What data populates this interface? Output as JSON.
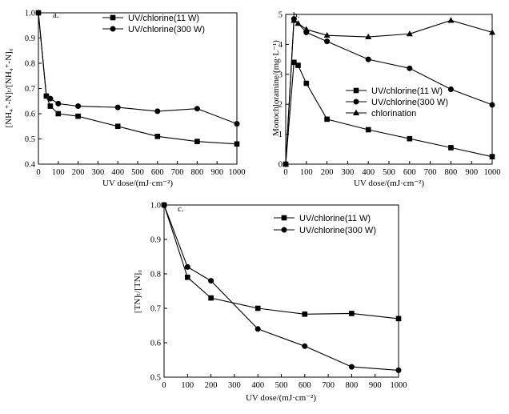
{
  "chart_data": [
    {
      "type": "line",
      "panel": "a.",
      "xlabel": "UV dose/(mJ·cm⁻²)",
      "ylabel": "[NH₄⁺-N]ₜ/[NH₄⁺-N]₀",
      "xlim": [
        0,
        1000
      ],
      "ylim": [
        0.4,
        1.0
      ],
      "xticks": [
        "0",
        "100",
        "200",
        "300",
        "400",
        "500",
        "600",
        "700",
        "800",
        "900",
        "1000"
      ],
      "yticks": [
        "0.4",
        "0.5",
        "0.6",
        "0.7",
        "0.8",
        "0.9",
        "1.0"
      ],
      "series": [
        {
          "name": "UV/chlorine(11 W)",
          "marker": "square",
          "x": [
            0,
            40,
            60,
            100,
            200,
            400,
            600,
            800,
            1000
          ],
          "y": [
            1.0,
            0.67,
            0.63,
            0.6,
            0.59,
            0.55,
            0.51,
            0.49,
            0.48
          ]
        },
        {
          "name": "UV/chlorine(300 W)",
          "marker": "circle",
          "x": [
            0,
            40,
            60,
            100,
            200,
            400,
            600,
            800,
            1000
          ],
          "y": [
            1.0,
            0.67,
            0.66,
            0.64,
            0.63,
            0.625,
            0.61,
            0.62,
            0.56
          ]
        }
      ]
    },
    {
      "type": "line",
      "panel": "b.",
      "xlabel": "UV dose/(mJ·cm⁻²)",
      "ylabel": "Monochloramine/(mg·L⁻¹)",
      "xlim": [
        0,
        1000
      ],
      "ylim": [
        0,
        5
      ],
      "xticks": [
        "0",
        "100",
        "200",
        "300",
        "400",
        "500",
        "600",
        "700",
        "800",
        "900",
        "1000"
      ],
      "yticks": [
        "0",
        "1",
        "2",
        "3",
        "4",
        "5"
      ],
      "series": [
        {
          "name": "UV/chlorine(11 W)",
          "marker": "square",
          "x": [
            0,
            40,
            60,
            100,
            200,
            400,
            600,
            800,
            1000
          ],
          "y": [
            0,
            3.4,
            3.3,
            2.7,
            1.5,
            1.15,
            0.85,
            0.55,
            0.25
          ]
        },
        {
          "name": "UV/chlorine(300 W)",
          "marker": "circle",
          "x": [
            0,
            40,
            100,
            200,
            400,
            600,
            800,
            1000
          ],
          "y": [
            0,
            4.85,
            4.4,
            4.1,
            3.5,
            3.2,
            2.5,
            1.98
          ]
        },
        {
          "name": "chlorination",
          "marker": "triangle",
          "x": [
            0,
            40,
            60,
            100,
            200,
            400,
            600,
            800,
            1000
          ],
          "y": [
            0,
            4.8,
            4.7,
            4.5,
            4.3,
            4.25,
            4.35,
            4.8,
            4.4
          ]
        }
      ]
    },
    {
      "type": "line",
      "panel": "c.",
      "xlabel": "UV dose/(mJ·cm⁻²)",
      "ylabel": "[TN]ₜ/[TN]₀",
      "xlim": [
        0,
        1000
      ],
      "ylim": [
        0.5,
        1.0
      ],
      "xticks": [
        "0",
        "100",
        "200",
        "300",
        "400",
        "500",
        "600",
        "700",
        "800",
        "900",
        "1000"
      ],
      "yticks": [
        "0.5",
        "0.6",
        "0.7",
        "0.8",
        "0.9",
        "1.0"
      ],
      "series": [
        {
          "name": "UV/chlorine(11 W)",
          "marker": "square",
          "x": [
            0,
            100,
            200,
            400,
            600,
            800,
            1000
          ],
          "y": [
            1.0,
            0.79,
            0.73,
            0.7,
            0.683,
            0.685,
            0.67
          ]
        },
        {
          "name": "UV/chlorine(300 W)",
          "marker": "circle",
          "x": [
            0,
            100,
            200,
            400,
            600,
            800,
            1000
          ],
          "y": [
            1.0,
            0.82,
            0.78,
            0.64,
            0.59,
            0.53,
            0.52
          ]
        }
      ]
    }
  ]
}
